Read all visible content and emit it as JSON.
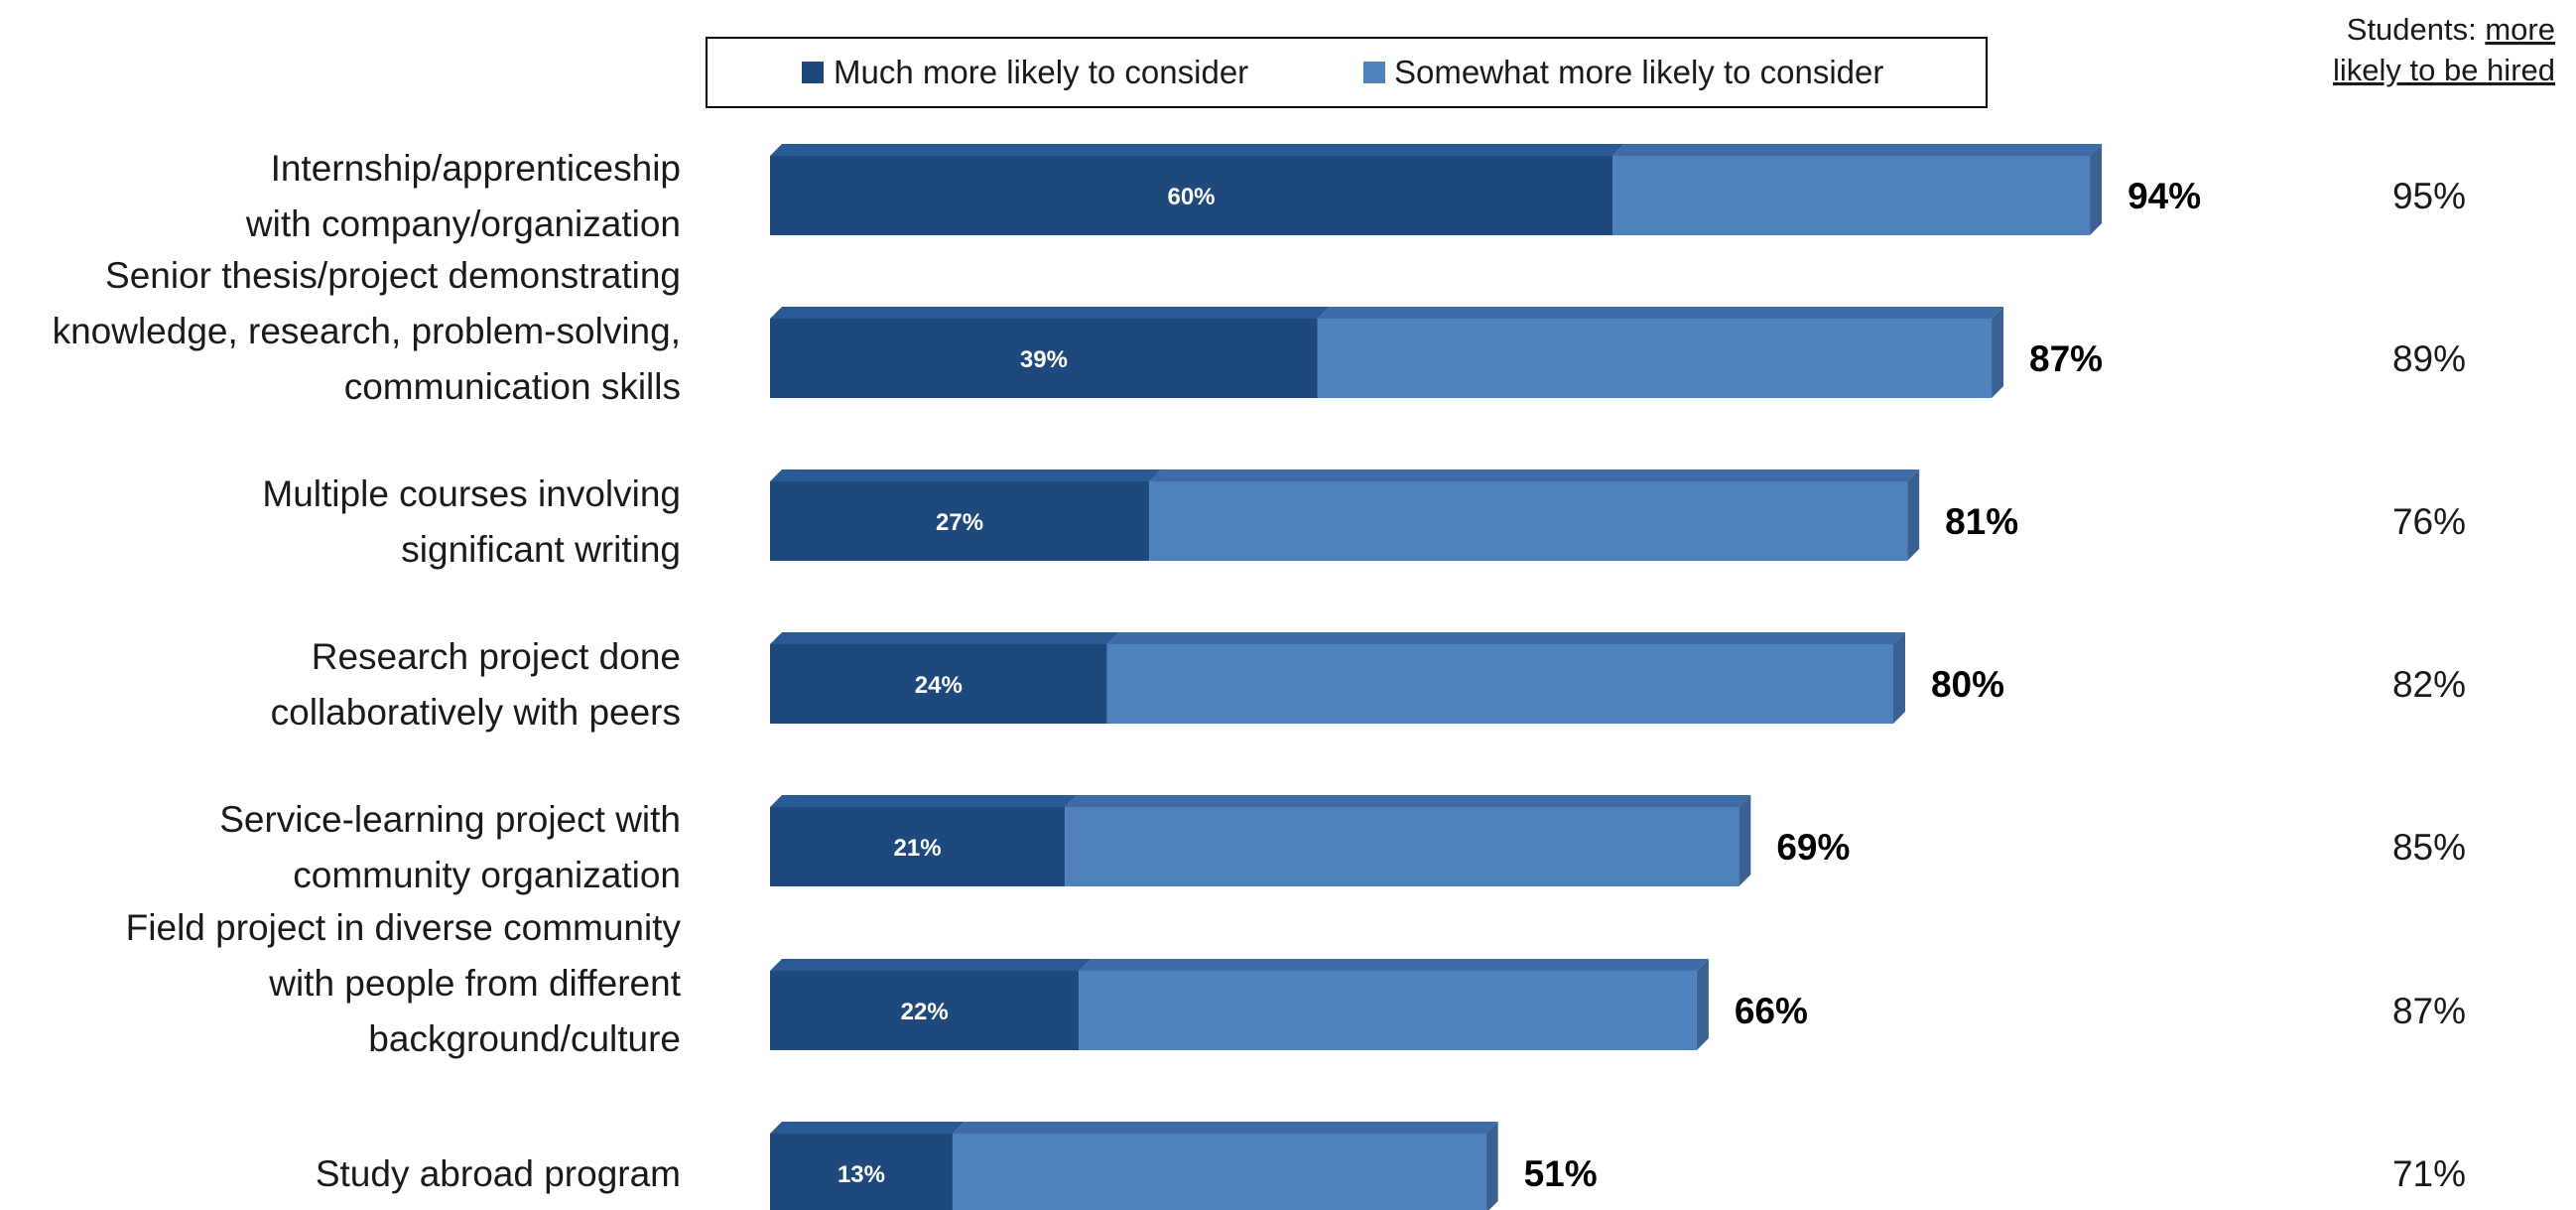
{
  "chart_data": {
    "type": "bar",
    "orientation": "horizontal",
    "stacked": true,
    "categories": [
      [
        "Internship/apprenticeship",
        "with company/organization"
      ],
      [
        "Senior thesis/project demonstrating",
        "knowledge, research, problem-solving,",
        "communication skills"
      ],
      [
        "Multiple courses involving",
        "significant writing"
      ],
      [
        "Research project done",
        "collaboratively with peers"
      ],
      [
        "Service-learning project with",
        "community organization"
      ],
      [
        "Field project in diverse community",
        "with people from different",
        "background/culture"
      ],
      [
        "Study abroad program"
      ]
    ],
    "series": [
      {
        "name": "Much more likely to consider",
        "color": "#1f497d",
        "values": [
          60,
          39,
          27,
          24,
          21,
          22,
          13
        ]
      },
      {
        "name": "Somewhat more likely to consider",
        "color": "#4f81bd",
        "values": [
          34,
          48,
          54,
          56,
          48,
          44,
          38
        ]
      }
    ],
    "segment_labels": [
      "60%",
      "39%",
      "27%",
      "24%",
      "21%",
      "22%",
      "13%"
    ],
    "totals": [
      94,
      87,
      81,
      80,
      69,
      66,
      51
    ],
    "total_labels": [
      "94%",
      "87%",
      "81%",
      "80%",
      "69%",
      "66%",
      "51%"
    ],
    "students_more_likely_hired": [
      "95%",
      "89%",
      "76%",
      "82%",
      "85%",
      "87%",
      "71%"
    ],
    "students_header": {
      "prefix": "Students: ",
      "underlined_1": "more",
      "underlined_2": "likely to be hired"
    },
    "legend_placement": "top",
    "grid": false,
    "xlim": [
      0,
      100
    ]
  }
}
